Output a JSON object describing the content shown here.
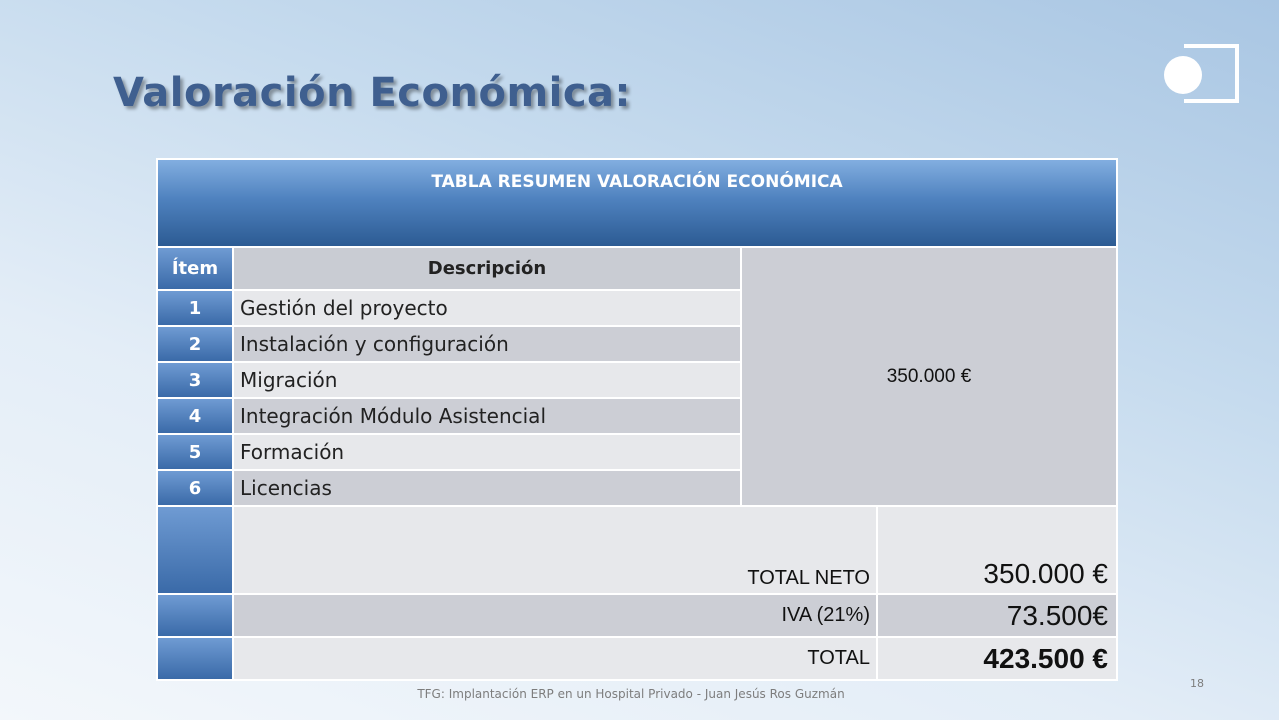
{
  "slide": {
    "title": "Valoración Económica:",
    "footer": "TFG: Implantación ERP en un Hospital Privado - Juan Jesús Ros Guzmán",
    "page_number": "18"
  },
  "table": {
    "header": "TABLA RESUMEN VALORACIÓN ECONÓMICA",
    "col_item": "Ítem",
    "col_desc": "Descripción",
    "rows": [
      {
        "n": "1",
        "desc": "Gestión del proyecto"
      },
      {
        "n": "2",
        "desc": "Instalación y configuración"
      },
      {
        "n": "3",
        "desc": "Migración"
      },
      {
        "n": "4",
        "desc": "Integración Módulo Asistencial"
      },
      {
        "n": "5",
        "desc": "Formación"
      },
      {
        "n": "6",
        "desc": "Licencias"
      }
    ],
    "grouped_price": "350.000 €",
    "totals": [
      {
        "label": "TOTAL NETO",
        "value": "350.000 €"
      },
      {
        "label": "IVA (21%)",
        "value": "73.500€"
      },
      {
        "label": "TOTAL",
        "value": "423.500 €"
      }
    ]
  },
  "colors": {
    "title": "#3f5f8f",
    "header_blue": "#4f82bf",
    "row_light": "#e7e8eb",
    "row_dark": "#ccced5"
  },
  "icons": [
    "logo-icon"
  ]
}
